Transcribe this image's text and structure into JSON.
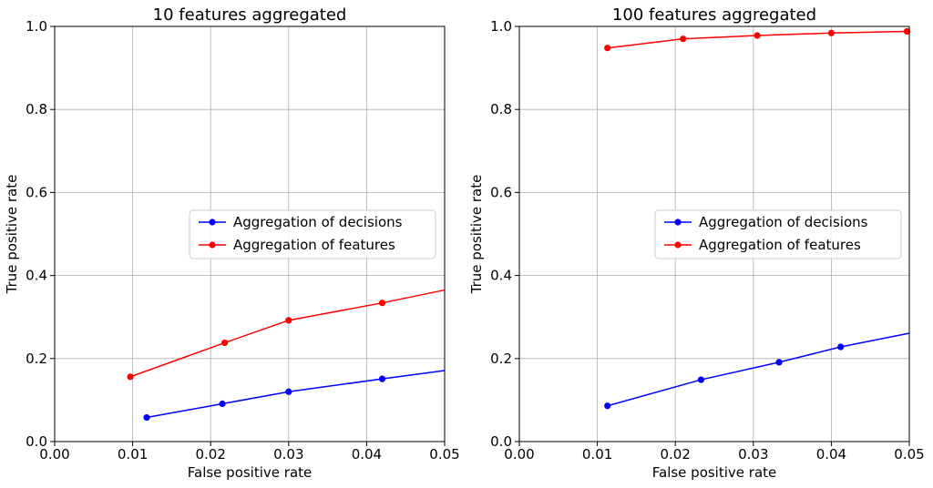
{
  "chart_data": [
    {
      "type": "line",
      "title": "10 features aggregated",
      "xlabel": "False positive rate",
      "ylabel": "True positive rate",
      "xlim": [
        0.0,
        0.05
      ],
      "ylim": [
        0.0,
        1.0
      ],
      "xticks": [
        "0.00",
        "0.01",
        "0.02",
        "0.03",
        "0.04",
        "0.05"
      ],
      "yticks": [
        "0.0",
        "0.2",
        "0.4",
        "0.6",
        "0.8",
        "1.0"
      ],
      "grid": true,
      "legend_position": "center-right",
      "series": [
        {
          "name": "Aggregation of decisions",
          "color": "#0000ff",
          "x": [
            0.0118,
            0.0215,
            0.03,
            0.042,
            0.05
          ],
          "y": [
            0.058,
            0.091,
            0.12,
            0.151,
            0.171
          ],
          "markers": [
            true,
            true,
            true,
            true,
            false
          ]
        },
        {
          "name": "Aggregation of features",
          "color": "#ff0000",
          "x": [
            0.0097,
            0.0218,
            0.03,
            0.042,
            0.05
          ],
          "y": [
            0.156,
            0.238,
            0.292,
            0.334,
            0.365
          ],
          "markers": [
            true,
            true,
            true,
            true,
            false
          ]
        }
      ]
    },
    {
      "type": "line",
      "title": "100 features aggregated",
      "xlabel": "False positive rate",
      "ylabel": "True positive rate",
      "xlim": [
        0.0,
        0.05
      ],
      "ylim": [
        0.0,
        1.0
      ],
      "xticks": [
        "0.00",
        "0.01",
        "0.02",
        "0.03",
        "0.04",
        "0.05"
      ],
      "yticks": [
        "0.0",
        "0.2",
        "0.4",
        "0.6",
        "0.8",
        "1.0"
      ],
      "grid": true,
      "legend_position": "center-right",
      "series": [
        {
          "name": "Aggregation of decisions",
          "color": "#0000ff",
          "x": [
            0.0113,
            0.0233,
            0.0333,
            0.0412,
            0.05
          ],
          "y": [
            0.086,
            0.149,
            0.191,
            0.228,
            0.261
          ],
          "markers": [
            true,
            true,
            true,
            true,
            false
          ]
        },
        {
          "name": "Aggregation of features",
          "color": "#ff0000",
          "x": [
            0.0113,
            0.021,
            0.0305,
            0.04,
            0.0497
          ],
          "y": [
            0.948,
            0.97,
            0.978,
            0.984,
            0.988
          ],
          "markers": [
            true,
            true,
            true,
            true,
            true
          ]
        }
      ]
    }
  ]
}
